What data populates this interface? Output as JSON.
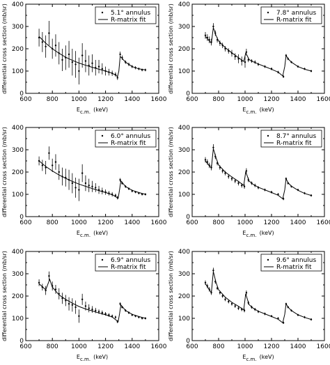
{
  "chart_data": [
    {
      "type": "scatter",
      "legend": "5.1° annulus",
      "fit_label": "R-matrix fit",
      "xlabel": "E",
      "xlabel_sub": "c.m.",
      "xlabel_unit": "(keV)",
      "ylabel": "differential cross section (mb/sr)",
      "xlim": [
        600,
        1600
      ],
      "ylim": [
        0,
        400
      ],
      "xticks": [
        600,
        800,
        1000,
        1200,
        1400,
        1600
      ],
      "yticks": [
        0,
        100,
        200,
        300,
        400
      ],
      "series": [
        {
          "name": "5.1° annulus",
          "kind": "data",
          "x": [
            700,
            725,
            750,
            775,
            800,
            825,
            850,
            875,
            900,
            925,
            950,
            975,
            1000,
            1025,
            1050,
            1075,
            1100,
            1125,
            1150,
            1175,
            1200,
            1225,
            1250,
            1275,
            1290,
            1310,
            1325,
            1350,
            1375,
            1400,
            1425,
            1450,
            1475,
            1500
          ],
          "y": [
            250,
            230,
            210,
            270,
            200,
            215,
            180,
            150,
            160,
            175,
            140,
            130,
            100,
            170,
            145,
            125,
            135,
            115,
            120,
            110,
            100,
            95,
            90,
            85,
            70,
            175,
            160,
            140,
            130,
            120,
            115,
            110,
            105,
            105
          ],
          "err": [
            40,
            45,
            50,
            55,
            45,
            50,
            50,
            50,
            55,
            60,
            60,
            60,
            60,
            55,
            50,
            45,
            40,
            35,
            30,
            25,
            20,
            15,
            12,
            10,
            10,
            12,
            10,
            8,
            8,
            7,
            7,
            6,
            6,
            6
          ]
        },
        {
          "name": "R-matrix fit",
          "kind": "fit",
          "x": [
            700,
            750,
            800,
            850,
            900,
            950,
            1000,
            1050,
            1100,
            1150,
            1200,
            1250,
            1280,
            1290,
            1300,
            1310,
            1320,
            1350,
            1400,
            1450,
            1500
          ],
          "y": [
            255,
            225,
            200,
            180,
            162,
            148,
            136,
            126,
            117,
            108,
            100,
            90,
            80,
            75,
            100,
            165,
            160,
            140,
            120,
            110,
            105
          ]
        }
      ]
    },
    {
      "type": "scatter",
      "legend": "7.8° annulus",
      "fit_label": "R-matrix fit",
      "xlabel": "E",
      "xlabel_sub": "c.m.",
      "xlabel_unit": "(keV)",
      "ylabel": "differential cross section (mb/sr)",
      "xlim": [
        600,
        1600
      ],
      "ylim": [
        0,
        400
      ],
      "xticks": [
        600,
        800,
        1000,
        1200,
        1400,
        1600
      ],
      "yticks": [
        0,
        100,
        200,
        300,
        400
      ],
      "series": [
        {
          "name": "7.8° annulus",
          "kind": "data",
          "x": [
            700,
            715,
            730,
            745,
            760,
            775,
            790,
            810,
            830,
            850,
            875,
            900,
            925,
            950,
            975,
            1000,
            1010,
            1025,
            1050,
            1075,
            1100,
            1150,
            1200,
            1250,
            1290,
            1310,
            1325,
            1350,
            1400,
            1450,
            1500
          ],
          "y": [
            260,
            250,
            240,
            230,
            300,
            270,
            240,
            225,
            215,
            200,
            190,
            180,
            165,
            155,
            145,
            140,
            185,
            150,
            145,
            140,
            130,
            120,
            110,
            95,
            75,
            170,
            155,
            140,
            120,
            110,
            100
          ],
          "err": [
            15,
            15,
            15,
            15,
            15,
            12,
            12,
            12,
            12,
            12,
            12,
            15,
            15,
            20,
            20,
            25,
            15,
            10,
            8,
            8,
            7,
            6,
            6,
            6,
            6,
            6,
            6,
            5,
            5,
            5,
            5
          ]
        },
        {
          "name": "R-matrix fit",
          "kind": "fit",
          "x": [
            700,
            730,
            745,
            760,
            780,
            800,
            850,
            900,
            950,
            990,
            1005,
            1015,
            1030,
            1060,
            1100,
            1150,
            1200,
            1250,
            1285,
            1300,
            1310,
            1325,
            1350,
            1400,
            1450,
            1500
          ],
          "y": [
            255,
            235,
            225,
            295,
            260,
            235,
            205,
            182,
            160,
            143,
            180,
            170,
            152,
            142,
            132,
            120,
            108,
            95,
            78,
            120,
            170,
            155,
            140,
            120,
            108,
            100
          ]
        }
      ]
    },
    {
      "type": "scatter",
      "legend": "6.0° annulus",
      "fit_label": "R-matrix fit",
      "xlabel": "E",
      "xlabel_sub": "c.m.",
      "xlabel_unit": "(keV)",
      "ylabel": "differential cross section (mb/sr)",
      "xlim": [
        600,
        1600
      ],
      "ylim": [
        0,
        400
      ],
      "xticks": [
        600,
        800,
        1000,
        1200,
        1400,
        1600
      ],
      "yticks": [
        0,
        100,
        200,
        300,
        400
      ],
      "series": [
        {
          "name": "6.0° annulus",
          "kind": "data",
          "x": [
            700,
            725,
            750,
            775,
            800,
            825,
            850,
            875,
            900,
            925,
            950,
            975,
            1000,
            1025,
            1050,
            1075,
            1100,
            1125,
            1150,
            1175,
            1200,
            1225,
            1250,
            1275,
            1290,
            1310,
            1325,
            1350,
            1375,
            1400,
            1425,
            1450,
            1475,
            1500
          ],
          "y": [
            250,
            230,
            220,
            285,
            230,
            245,
            200,
            180,
            175,
            165,
            150,
            130,
            120,
            195,
            150,
            140,
            135,
            130,
            120,
            115,
            110,
            105,
            100,
            95,
            85,
            165,
            150,
            135,
            125,
            115,
            110,
            105,
            100,
            100
          ],
          "err": [
            20,
            25,
            30,
            30,
            30,
            35,
            35,
            40,
            40,
            45,
            45,
            45,
            50,
            40,
            35,
            30,
            25,
            20,
            18,
            15,
            12,
            10,
            10,
            8,
            8,
            8,
            7,
            6,
            6,
            6,
            5,
            5,
            5,
            5
          ]
        },
        {
          "name": "R-matrix fit",
          "kind": "fit",
          "x": [
            700,
            750,
            800,
            850,
            900,
            950,
            1000,
            1050,
            1100,
            1150,
            1200,
            1250,
            1280,
            1295,
            1305,
            1315,
            1330,
            1350,
            1400,
            1450,
            1500
          ],
          "y": [
            250,
            225,
            205,
            187,
            172,
            158,
            146,
            136,
            126,
            117,
            108,
            98,
            88,
            82,
            120,
            160,
            150,
            135,
            118,
            108,
            100
          ]
        }
      ]
    },
    {
      "type": "scatter",
      "legend": "8.7° annulus",
      "fit_label": "R-matrix fit",
      "xlabel": "E",
      "xlabel_sub": "c.m.",
      "xlabel_unit": "(keV)",
      "ylabel": "differential cross section (mb/sr)",
      "xlim": [
        600,
        1600
      ],
      "ylim": [
        0,
        400
      ],
      "xticks": [
        600,
        800,
        1000,
        1200,
        1400,
        1600
      ],
      "yticks": [
        0,
        100,
        200,
        300,
        400
      ],
      "series": [
        {
          "name": "8.7° annulus",
          "kind": "data",
          "x": [
            700,
            715,
            730,
            745,
            760,
            775,
            790,
            810,
            830,
            850,
            875,
            900,
            925,
            950,
            975,
            995,
            1010,
            1025,
            1050,
            1075,
            1100,
            1150,
            1200,
            1250,
            1290,
            1310,
            1325,
            1350,
            1400,
            1450,
            1500
          ],
          "y": [
            255,
            245,
            230,
            220,
            310,
            270,
            240,
            220,
            205,
            195,
            180,
            170,
            160,
            150,
            140,
            135,
            205,
            165,
            150,
            140,
            130,
            120,
            110,
            100,
            80,
            170,
            150,
            135,
            120,
            105,
            95
          ],
          "err": [
            12,
            12,
            12,
            12,
            15,
            12,
            10,
            10,
            10,
            10,
            10,
            10,
            10,
            10,
            10,
            10,
            12,
            10,
            8,
            8,
            7,
            6,
            6,
            6,
            6,
            6,
            6,
            5,
            5,
            5,
            5
          ]
        },
        {
          "name": "R-matrix fit",
          "kind": "fit",
          "x": [
            700,
            730,
            745,
            760,
            780,
            800,
            850,
            900,
            950,
            990,
            1005,
            1015,
            1030,
            1060,
            1100,
            1150,
            1200,
            1250,
            1285,
            1300,
            1310,
            1325,
            1350,
            1400,
            1450,
            1500
          ],
          "y": [
            250,
            228,
            218,
            305,
            265,
            232,
            200,
            178,
            158,
            140,
            200,
            185,
            160,
            145,
            132,
            120,
            108,
            96,
            80,
            120,
            170,
            152,
            137,
            118,
            104,
            95
          ]
        }
      ]
    },
    {
      "type": "scatter",
      "legend": "6.9° annulus",
      "fit_label": "R-matrix fit",
      "xlabel": "E",
      "xlabel_sub": "c.m.",
      "xlabel_unit": "(keV)",
      "ylabel": "differential cross section (mb/sr)",
      "xlim": [
        600,
        1600
      ],
      "ylim": [
        0,
        400
      ],
      "xticks": [
        600,
        800,
        1000,
        1200,
        1400,
        1600
      ],
      "yticks": [
        0,
        100,
        200,
        300,
        400
      ],
      "series": [
        {
          "name": "6.9° annulus",
          "kind": "data",
          "x": [
            700,
            725,
            750,
            775,
            800,
            825,
            850,
            875,
            900,
            925,
            950,
            975,
            1000,
            1025,
            1050,
            1075,
            1100,
            1125,
            1150,
            1175,
            1200,
            1225,
            1250,
            1275,
            1290,
            1310,
            1325,
            1350,
            1375,
            1400,
            1425,
            1450,
            1475,
            1500
          ],
          "y": [
            260,
            240,
            225,
            290,
            245,
            230,
            210,
            190,
            180,
            165,
            160,
            150,
            110,
            185,
            155,
            145,
            140,
            135,
            130,
            125,
            120,
            115,
            110,
            105,
            85,
            165,
            150,
            135,
            125,
            115,
            110,
            105,
            100,
            100
          ],
          "err": [
            15,
            15,
            20,
            20,
            20,
            20,
            25,
            25,
            25,
            30,
            30,
            30,
            30,
            25,
            20,
            18,
            15,
            12,
            10,
            10,
            8,
            8,
            7,
            7,
            7,
            7,
            6,
            6,
            6,
            5,
            5,
            5,
            5,
            5
          ]
        },
        {
          "name": "R-matrix fit",
          "kind": "fit",
          "x": [
            700,
            750,
            780,
            800,
            850,
            900,
            950,
            1000,
            1050,
            1100,
            1150,
            1200,
            1250,
            1280,
            1295,
            1305,
            1315,
            1330,
            1350,
            1400,
            1450,
            1500
          ],
          "y": [
            255,
            228,
            275,
            240,
            205,
            185,
            168,
            153,
            142,
            133,
            124,
            116,
            106,
            92,
            85,
            120,
            160,
            150,
            135,
            118,
            108,
            100
          ]
        }
      ]
    },
    {
      "type": "scatter",
      "legend": "9.6° annulus",
      "fit_label": "R-matrix fit",
      "xlabel": "E",
      "xlabel_sub": "c.m.",
      "xlabel_unit": "(keV)",
      "ylabel": "differential cross section (mb/sr)",
      "xlim": [
        600,
        1600
      ],
      "ylim": [
        0,
        400
      ],
      "xticks": [
        600,
        800,
        1000,
        1200,
        1400,
        1600
      ],
      "yticks": [
        0,
        100,
        200,
        300,
        400
      ],
      "series": [
        {
          "name": "9.6° annulus",
          "kind": "data",
          "x": [
            700,
            715,
            730,
            745,
            760,
            775,
            790,
            810,
            830,
            850,
            875,
            900,
            925,
            950,
            975,
            995,
            1010,
            1025,
            1050,
            1075,
            1100,
            1150,
            1200,
            1250,
            1290,
            1310,
            1325,
            1350,
            1400,
            1450,
            1500
          ],
          "y": [
            260,
            245,
            230,
            215,
            315,
            265,
            235,
            215,
            200,
            185,
            175,
            165,
            155,
            145,
            140,
            135,
            215,
            170,
            150,
            140,
            130,
            120,
            110,
            100,
            80,
            165,
            150,
            135,
            115,
            105,
            95
          ],
          "err": [
            10,
            10,
            10,
            10,
            12,
            10,
            8,
            8,
            8,
            8,
            8,
            8,
            8,
            8,
            8,
            8,
            10,
            8,
            7,
            7,
            6,
            6,
            5,
            5,
            5,
            5,
            5,
            5,
            5,
            5,
            5
          ]
        },
        {
          "name": "R-matrix fit",
          "kind": "fit",
          "x": [
            700,
            730,
            745,
            760,
            780,
            800,
            850,
            900,
            950,
            990,
            1005,
            1015,
            1030,
            1060,
            1100,
            1150,
            1200,
            1250,
            1285,
            1300,
            1310,
            1325,
            1350,
            1400,
            1450,
            1500
          ],
          "y": [
            255,
            228,
            215,
            310,
            262,
            228,
            195,
            172,
            154,
            138,
            210,
            190,
            162,
            146,
            132,
            120,
            108,
            96,
            80,
            118,
            165,
            150,
            135,
            116,
            104,
            95
          ]
        }
      ]
    }
  ]
}
